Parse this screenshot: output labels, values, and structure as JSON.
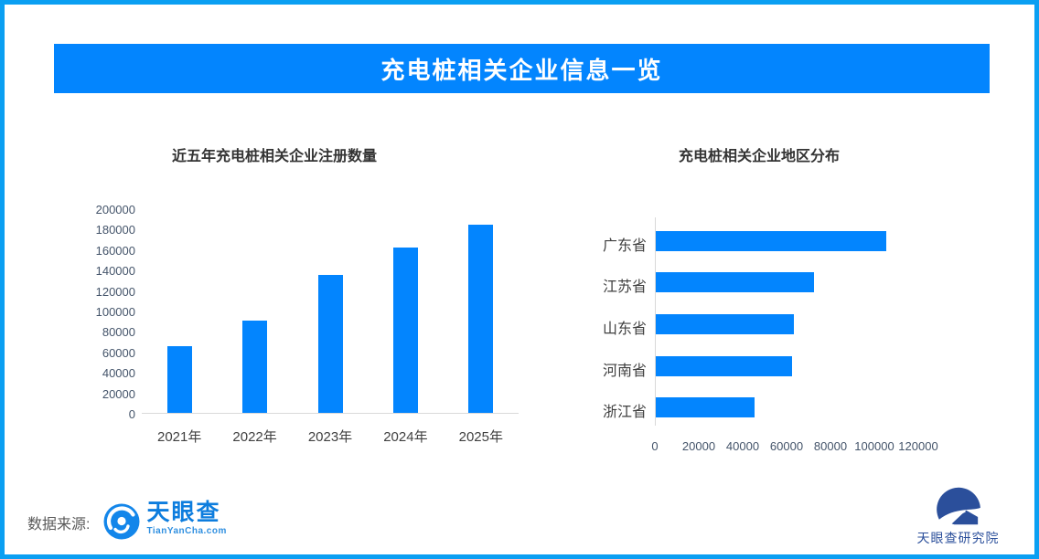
{
  "page": {
    "title": "充电桩相关企业信息一览",
    "accent_color": "#0385fe",
    "frame_border_color": "#0a9ff2"
  },
  "chart_data": [
    {
      "type": "bar",
      "orientation": "vertical",
      "title": "近五年充电桩相关企业注册数量",
      "categories": [
        "2021年",
        "2022年",
        "2023年",
        "2024年",
        "2025年"
      ],
      "values": [
        65000,
        90000,
        135000,
        162000,
        184000
      ],
      "ylim": [
        0,
        200000
      ],
      "yticks": [
        0,
        20000,
        40000,
        60000,
        80000,
        100000,
        120000,
        140000,
        160000,
        180000,
        200000
      ],
      "bar_color": "#0385fe",
      "grid": false,
      "legend": "none"
    },
    {
      "type": "bar",
      "orientation": "horizontal",
      "title": "充电桩相关企业地区分布",
      "categories": [
        "广东省",
        "江苏省",
        "山东省",
        "河南省",
        "浙江省"
      ],
      "values": [
        105000,
        72000,
        63000,
        62000,
        45000
      ],
      "xlim": [
        0,
        120000
      ],
      "xticks": [
        0,
        20000,
        40000,
        60000,
        80000,
        100000,
        120000
      ],
      "bar_color": "#0385fe",
      "grid": false,
      "legend": "none"
    }
  ],
  "footer": {
    "source_label": "数据来源:",
    "brand_name": "天眼查",
    "brand_subtext": "TianYanCha.com",
    "institute_name": "天眼查研究院",
    "brand_color": "#0d7dde",
    "institute_color": "#2b4f9b"
  }
}
